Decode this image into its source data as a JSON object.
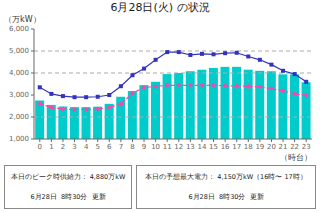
{
  "chart_data": {
    "type": "bar",
    "title": "6月28日(火) の状況",
    "y_label": "（万kW）",
    "x_label": "（時台）",
    "categories": [
      "0",
      "1",
      "2",
      "3",
      "4",
      "5",
      "6",
      "7",
      "8",
      "9",
      "10",
      "11",
      "12",
      "13",
      "14",
      "15",
      "16",
      "17",
      "18",
      "19",
      "20",
      "21",
      "22",
      "23"
    ],
    "series": [
      {
        "type": "bar",
        "color": "#00CCCC",
        "values": [
          2750,
          2550,
          2480,
          2450,
          2450,
          2470,
          2600,
          2920,
          3180,
          3450,
          3600,
          3950,
          4000,
          4080,
          4150,
          4230,
          4280,
          4280,
          4150,
          4100,
          4080,
          3940,
          3940,
          3580
        ]
      },
      {
        "type": "line",
        "color": "#3333BB",
        "marker": "square",
        "line_style": "solid",
        "values": [
          3350,
          3050,
          2950,
          2900,
          2900,
          2920,
          3000,
          3400,
          3900,
          4200,
          4600,
          4950,
          4950,
          4820,
          4870,
          4850,
          4900,
          4920,
          4750,
          4600,
          4380,
          4100,
          3950,
          3600
        ]
      },
      {
        "type": "line",
        "color": "#FF44AA",
        "marker": "diamond",
        "line_style": "dashed",
        "values": [
          2600,
          2430,
          2360,
          2340,
          2340,
          2360,
          2440,
          2580,
          3080,
          3340,
          3390,
          3440,
          3440,
          3440,
          3440,
          3440,
          3420,
          3410,
          3390,
          3370,
          3290,
          3190,
          3040,
          2990
        ]
      }
    ],
    "ylim": [
      1000,
      6000
    ],
    "yticks": [
      {
        "value": 1000,
        "label": "1,000"
      },
      {
        "value": 2000,
        "label": "2,000"
      },
      {
        "value": 3000,
        "label": "3,000"
      },
      {
        "value": 4000,
        "label": "4,000"
      },
      {
        "value": 5000,
        "label": "5,000"
      },
      {
        "value": 6000,
        "label": "6,000"
      }
    ],
    "reference_lines": [
      5000,
      4000,
      2000
    ],
    "grid": false,
    "annotations": [
      "本日のピーク時供給力： 4,880万kW",
      "6月28日  8時30分  更新",
      "本日の予想最大電力： 4,150万kW（16時〜 17時）",
      "6月28日  8時30分  更新"
    ]
  }
}
